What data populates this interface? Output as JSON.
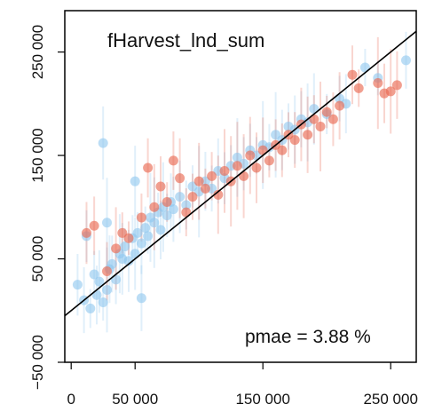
{
  "chart_data": {
    "type": "scatter",
    "title": "fHarvest_lnd_sum",
    "annotation": "pmae = 3.88 %",
    "xlim": [
      -5000,
      270000
    ],
    "ylim": [
      -50000,
      290000
    ],
    "x_ticks": [
      0,
      50000,
      150000,
      250000
    ],
    "x_tick_labels": [
      "0",
      "50 000",
      "150 000",
      "250 000"
    ],
    "y_ticks": [
      -50000,
      50000,
      150000,
      250000
    ],
    "y_tick_labels": [
      "−50 000",
      "50 000",
      "150 000",
      "250 000"
    ],
    "reference_line": {
      "slope": 1,
      "intercept": 0
    },
    "grid": false,
    "colors": {
      "series_blue": "#8ec6ee",
      "series_red": "#ea6c55",
      "line": "#000000"
    },
    "series": [
      {
        "color": "#8ec6ee",
        "points": [
          [
            5000,
            25000
          ],
          [
            10000,
            10000
          ],
          [
            15000,
            2000
          ],
          [
            18000,
            35000
          ],
          [
            20000,
            15000
          ],
          [
            22000,
            28000
          ],
          [
            25000,
            8000
          ],
          [
            28000,
            20000
          ],
          [
            30000,
            40000
          ],
          [
            32000,
            45000
          ],
          [
            35000,
            30000
          ],
          [
            38000,
            55000
          ],
          [
            40000,
            50000
          ],
          [
            42000,
            62000
          ],
          [
            45000,
            48000
          ],
          [
            48000,
            70000
          ],
          [
            50000,
            55000
          ],
          [
            52000,
            75000
          ],
          [
            55000,
            12000
          ],
          [
            55000,
            65000
          ],
          [
            58000,
            80000
          ],
          [
            60000,
            72000
          ],
          [
            62000,
            90000
          ],
          [
            65000,
            85000
          ],
          [
            68000,
            95000
          ],
          [
            70000,
            78000
          ],
          [
            72000,
            100000
          ],
          [
            75000,
            92000
          ],
          [
            78000,
            105000
          ],
          [
            80000,
            98000
          ],
          [
            85000,
            110000
          ],
          [
            90000,
            102000
          ],
          [
            95000,
            120000
          ],
          [
            100000,
            115000
          ],
          [
            105000,
            125000
          ],
          [
            110000,
            118000
          ],
          [
            115000,
            135000
          ],
          [
            120000,
            128000
          ],
          [
            125000,
            140000
          ],
          [
            130000,
            148000
          ],
          [
            135000,
            142000
          ],
          [
            140000,
            155000
          ],
          [
            145000,
            150000
          ],
          [
            150000,
            160000
          ],
          [
            155000,
            158000
          ],
          [
            160000,
            170000
          ],
          [
            165000,
            165000
          ],
          [
            170000,
            178000
          ],
          [
            175000,
            175000
          ],
          [
            180000,
            185000
          ],
          [
            185000,
            182000
          ],
          [
            190000,
            195000
          ],
          [
            200000,
            190000
          ],
          [
            210000,
            205000
          ],
          [
            215000,
            200000
          ],
          [
            230000,
            235000
          ],
          [
            240000,
            225000
          ],
          [
            262000,
            242000
          ],
          [
            25000,
            162000
          ],
          [
            50000,
            125000
          ],
          [
            28000,
            85000
          ],
          [
            12000,
            72000
          ]
        ]
      },
      {
        "color": "#ea6c55",
        "points": [
          [
            18000,
            82000
          ],
          [
            12000,
            75000
          ],
          [
            28000,
            38000
          ],
          [
            35000,
            60000
          ],
          [
            60000,
            138000
          ],
          [
            80000,
            145000
          ],
          [
            90000,
            95000
          ],
          [
            95000,
            110000
          ],
          [
            100000,
            125000
          ],
          [
            105000,
            118000
          ],
          [
            110000,
            130000
          ],
          [
            115000,
            112000
          ],
          [
            120000,
            135000
          ],
          [
            125000,
            125000
          ],
          [
            130000,
            140000
          ],
          [
            135000,
            130000
          ],
          [
            140000,
            150000
          ],
          [
            145000,
            138000
          ],
          [
            150000,
            155000
          ],
          [
            155000,
            145000
          ],
          [
            160000,
            160000
          ],
          [
            165000,
            155000
          ],
          [
            170000,
            170000
          ],
          [
            175000,
            165000
          ],
          [
            180000,
            180000
          ],
          [
            185000,
            170000
          ],
          [
            190000,
            185000
          ],
          [
            195000,
            178000
          ],
          [
            200000,
            192000
          ],
          [
            205000,
            185000
          ],
          [
            210000,
            198000
          ],
          [
            220000,
            228000
          ],
          [
            225000,
            215000
          ],
          [
            240000,
            220000
          ],
          [
            245000,
            210000
          ],
          [
            250000,
            212000
          ],
          [
            255000,
            218000
          ],
          [
            70000,
            120000
          ],
          [
            75000,
            105000
          ],
          [
            85000,
            128000
          ],
          [
            65000,
            100000
          ],
          [
            55000,
            90000
          ],
          [
            45000,
            70000
          ],
          [
            40000,
            75000
          ]
        ]
      }
    ]
  }
}
